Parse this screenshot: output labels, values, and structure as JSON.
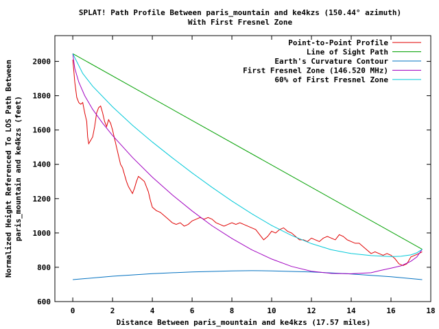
{
  "chart_data": {
    "type": "line",
    "title_line1": "SPLAT! Path Profile Between paris_mountain and ke4kzs (150.44° azimuth)",
    "title_line2": "With First Fresnel Zone",
    "xlabel": "Distance Between paris_mountain and ke4kzs (17.57 miles)",
    "ylabel_line1": "Normalized Height Referenced To LOS Path Between",
    "ylabel_line2": "paris_mountain and ke4kzs (feet)",
    "xlim": [
      -0.9,
      18.0
    ],
    "ylim": [
      600,
      2150
    ],
    "x_ticks": [
      0,
      2,
      4,
      6,
      8,
      10,
      12,
      14,
      16,
      18
    ],
    "y_ticks": [
      600,
      800,
      1000,
      1200,
      1400,
      1600,
      1800,
      2000
    ],
    "legend_position": "top-right",
    "series": [
      {
        "name": "Point-to-Point Profile",
        "color": "#e00000",
        "points": [
          [
            0,
            2010
          ],
          [
            0.05,
            1950
          ],
          [
            0.1,
            1880
          ],
          [
            0.2,
            1790
          ],
          [
            0.3,
            1760
          ],
          [
            0.4,
            1750
          ],
          [
            0.5,
            1760
          ],
          [
            0.6,
            1700
          ],
          [
            0.7,
            1650
          ],
          [
            0.75,
            1560
          ],
          [
            0.8,
            1520
          ],
          [
            0.9,
            1540
          ],
          [
            1.0,
            1560
          ],
          [
            1.1,
            1620
          ],
          [
            1.2,
            1700
          ],
          [
            1.3,
            1730
          ],
          [
            1.4,
            1740
          ],
          [
            1.5,
            1700
          ],
          [
            1.6,
            1650
          ],
          [
            1.7,
            1620
          ],
          [
            1.8,
            1660
          ],
          [
            1.9,
            1640
          ],
          [
            2.0,
            1600
          ],
          [
            2.1,
            1550
          ],
          [
            2.2,
            1500
          ],
          [
            2.3,
            1450
          ],
          [
            2.4,
            1400
          ],
          [
            2.5,
            1380
          ],
          [
            2.6,
            1340
          ],
          [
            2.7,
            1300
          ],
          [
            2.8,
            1270
          ],
          [
            2.9,
            1250
          ],
          [
            3.0,
            1230
          ],
          [
            3.1,
            1260
          ],
          [
            3.2,
            1300
          ],
          [
            3.3,
            1330
          ],
          [
            3.4,
            1320
          ],
          [
            3.5,
            1310
          ],
          [
            3.6,
            1300
          ],
          [
            3.7,
            1270
          ],
          [
            3.8,
            1240
          ],
          [
            3.9,
            1190
          ],
          [
            4.0,
            1150
          ],
          [
            4.2,
            1130
          ],
          [
            4.4,
            1120
          ],
          [
            4.6,
            1100
          ],
          [
            4.8,
            1080
          ],
          [
            5.0,
            1060
          ],
          [
            5.2,
            1050
          ],
          [
            5.4,
            1060
          ],
          [
            5.6,
            1040
          ],
          [
            5.8,
            1050
          ],
          [
            6.0,
            1070
          ],
          [
            6.2,
            1080
          ],
          [
            6.4,
            1090
          ],
          [
            6.6,
            1080
          ],
          [
            6.8,
            1090
          ],
          [
            7.0,
            1080
          ],
          [
            7.2,
            1060
          ],
          [
            7.4,
            1050
          ],
          [
            7.6,
            1040
          ],
          [
            7.8,
            1050
          ],
          [
            8.0,
            1060
          ],
          [
            8.2,
            1050
          ],
          [
            8.4,
            1060
          ],
          [
            8.6,
            1050
          ],
          [
            8.8,
            1040
          ],
          [
            9.0,
            1030
          ],
          [
            9.2,
            1020
          ],
          [
            9.4,
            990
          ],
          [
            9.6,
            960
          ],
          [
            9.8,
            980
          ],
          [
            10.0,
            1010
          ],
          [
            10.2,
            1000
          ],
          [
            10.4,
            1020
          ],
          [
            10.6,
            1030
          ],
          [
            10.8,
            1010
          ],
          [
            11.0,
            1000
          ],
          [
            11.2,
            980
          ],
          [
            11.4,
            960
          ],
          [
            11.6,
            960
          ],
          [
            11.8,
            950
          ],
          [
            12.0,
            970
          ],
          [
            12.2,
            960
          ],
          [
            12.4,
            950
          ],
          [
            12.6,
            970
          ],
          [
            12.8,
            980
          ],
          [
            13.0,
            970
          ],
          [
            13.2,
            960
          ],
          [
            13.4,
            990
          ],
          [
            13.6,
            980
          ],
          [
            13.8,
            960
          ],
          [
            14.0,
            950
          ],
          [
            14.2,
            940
          ],
          [
            14.4,
            940
          ],
          [
            14.6,
            920
          ],
          [
            14.8,
            900
          ],
          [
            15.0,
            880
          ],
          [
            15.2,
            890
          ],
          [
            15.4,
            880
          ],
          [
            15.6,
            870
          ],
          [
            15.8,
            880
          ],
          [
            16.0,
            870
          ],
          [
            16.2,
            850
          ],
          [
            16.4,
            820
          ],
          [
            16.6,
            810
          ],
          [
            16.8,
            820
          ],
          [
            17.0,
            860
          ],
          [
            17.2,
            870
          ],
          [
            17.4,
            880
          ],
          [
            17.57,
            890
          ]
        ]
      },
      {
        "name": "Line of Sight Path",
        "color": "#00a000",
        "points": [
          [
            0,
            2045
          ],
          [
            17.57,
            905
          ]
        ]
      },
      {
        "name": "Earth's Curvature Contour",
        "color": "#0070c0",
        "points": [
          [
            0,
            728
          ],
          [
            2,
            748
          ],
          [
            4,
            763
          ],
          [
            6,
            773
          ],
          [
            8,
            779
          ],
          [
            9,
            780
          ],
          [
            10,
            779
          ],
          [
            12,
            773
          ],
          [
            14,
            761
          ],
          [
            16,
            745
          ],
          [
            17.57,
            728
          ]
        ]
      },
      {
        "name": "First Fresnel Zone (146.520 MHz)",
        "color": "#a000c0",
        "points": [
          [
            0,
            2045
          ],
          [
            0.1,
            1960
          ],
          [
            0.3,
            1880
          ],
          [
            0.6,
            1800
          ],
          [
            1.0,
            1720
          ],
          [
            1.5,
            1640
          ],
          [
            2,
            1568
          ],
          [
            3,
            1440
          ],
          [
            4,
            1325
          ],
          [
            5,
            1222
          ],
          [
            6,
            1128
          ],
          [
            7,
            1042
          ],
          [
            8,
            968
          ],
          [
            9,
            902
          ],
          [
            10,
            848
          ],
          [
            11,
            805
          ],
          [
            12,
            777
          ],
          [
            13,
            764
          ],
          [
            14,
            762
          ],
          [
            15,
            768
          ],
          [
            15.5,
            782
          ],
          [
            16,
            795
          ],
          [
            16.5,
            808
          ],
          [
            17,
            835
          ],
          [
            17.3,
            860
          ],
          [
            17.57,
            905
          ]
        ]
      },
      {
        "name": "60% of First Fresnel Zone",
        "color": "#00c8d8",
        "points": [
          [
            0,
            2045
          ],
          [
            0.5,
            1930
          ],
          [
            1,
            1855
          ],
          [
            2,
            1735
          ],
          [
            3,
            1628
          ],
          [
            4,
            1530
          ],
          [
            5,
            1438
          ],
          [
            6,
            1350
          ],
          [
            7,
            1266
          ],
          [
            8,
            1186
          ],
          [
            9,
            1112
          ],
          [
            10,
            1044
          ],
          [
            11,
            986
          ],
          [
            12,
            938
          ],
          [
            13,
            902
          ],
          [
            14,
            880
          ],
          [
            15,
            868
          ],
          [
            16,
            862
          ],
          [
            16.5,
            864
          ],
          [
            17,
            872
          ],
          [
            17.3,
            884
          ],
          [
            17.57,
            905
          ]
        ]
      }
    ]
  }
}
